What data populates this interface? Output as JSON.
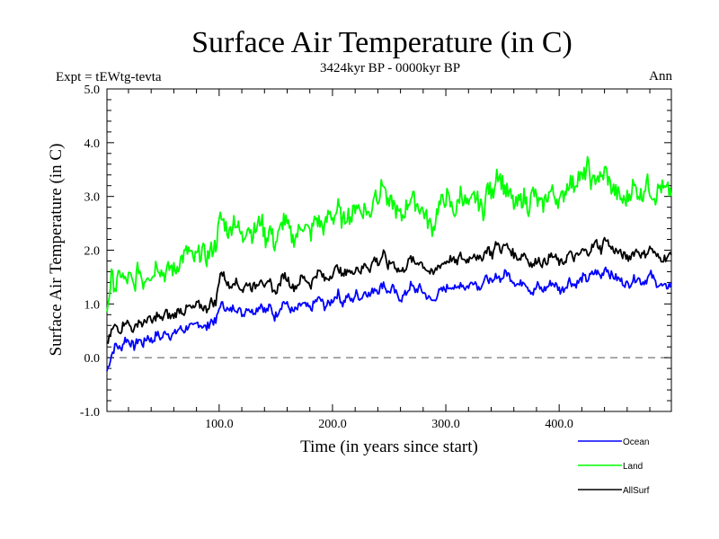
{
  "chart_data": {
    "type": "line",
    "title": "Surface Air Temperature (in C)",
    "subtitle": "3424kyr BP - 0000kyr BP",
    "left_annotation": "Expt = tEWtg-tevta",
    "right_annotation": "Ann",
    "xlabel": "Time (in years since start)",
    "ylabel": "Surface Air Temperature (in C)",
    "xlim": [
      1,
      499
    ],
    "ylim": [
      -1.0,
      5.0
    ],
    "x_ticks": [
      100,
      200,
      300,
      400
    ],
    "x_tick_labels": [
      "100.0",
      "200.0",
      "300.0",
      "400.0"
    ],
    "y_ticks": [
      -1,
      0,
      1,
      2,
      3,
      4,
      5
    ],
    "y_tick_labels": [
      "-1.0",
      "0.0",
      "1.0",
      "2.0",
      "3.0",
      "4.0",
      "5.0"
    ],
    "reference_line": {
      "y": 0.0,
      "style": "dashed",
      "color": "#555555"
    },
    "grid": false,
    "legend_position": "below-right",
    "x_step": 4,
    "x_start": 1,
    "series": [
      {
        "name": "Ocean",
        "color": "#0000ff",
        "values": [
          -0.25,
          0.05,
          0.25,
          0.15,
          0.35,
          0.3,
          0.2,
          0.35,
          0.25,
          0.4,
          0.3,
          0.45,
          0.35,
          0.5,
          0.4,
          0.45,
          0.55,
          0.5,
          0.6,
          0.55,
          0.65,
          0.6,
          0.55,
          0.7,
          0.65,
          1.0,
          0.95,
          0.85,
          0.95,
          0.9,
          0.8,
          0.95,
          0.85,
          0.9,
          1.0,
          0.85,
          0.95,
          0.75,
          0.9,
          1.05,
          0.95,
          0.85,
          0.9,
          1.0,
          0.95,
          0.9,
          1.05,
          1.1,
          0.95,
          1.0,
          1.1,
          1.2,
          1.0,
          1.15,
          1.05,
          1.2,
          1.1,
          1.25,
          1.15,
          1.3,
          1.25,
          1.4,
          1.2,
          1.3,
          1.15,
          1.1,
          1.2,
          1.35,
          1.25,
          1.3,
          1.2,
          1.1,
          1.05,
          1.2,
          1.25,
          1.3,
          1.35,
          1.25,
          1.4,
          1.3,
          1.35,
          1.45,
          1.3,
          1.4,
          1.5,
          1.35,
          1.55,
          1.45,
          1.6,
          1.5,
          1.4,
          1.35,
          1.45,
          1.3,
          1.2,
          1.35,
          1.25,
          1.3,
          1.4,
          1.35,
          1.25,
          1.3,
          1.45,
          1.35,
          1.4,
          1.5,
          1.45,
          1.55,
          1.6,
          1.5,
          1.7,
          1.55,
          1.5,
          1.45,
          1.4,
          1.35,
          1.45,
          1.5,
          1.4,
          1.45,
          1.55,
          1.4,
          1.35,
          1.3,
          1.35
        ]
      },
      {
        "name": "Land",
        "color": "#00ff00",
        "values": [
          0.9,
          1.5,
          1.3,
          1.6,
          1.4,
          1.5,
          1.3,
          1.7,
          1.4,
          1.6,
          1.5,
          1.8,
          1.6,
          1.55,
          1.7,
          1.6,
          1.8,
          1.9,
          2.0,
          1.8,
          1.9,
          2.0,
          1.85,
          2.0,
          2.1,
          2.6,
          2.5,
          2.3,
          2.6,
          2.4,
          2.2,
          2.5,
          2.3,
          2.4,
          2.6,
          2.2,
          2.4,
          2.1,
          2.3,
          2.6,
          2.4,
          2.2,
          2.3,
          2.5,
          2.4,
          2.3,
          2.6,
          2.5,
          2.4,
          2.7,
          2.6,
          2.8,
          2.5,
          2.7,
          2.6,
          2.9,
          2.7,
          2.8,
          2.6,
          3.1,
          3.0,
          3.3,
          2.8,
          2.9,
          2.7,
          2.6,
          2.8,
          3.0,
          2.9,
          2.8,
          2.7,
          2.5,
          2.4,
          2.8,
          2.9,
          3.0,
          2.8,
          2.7,
          3.1,
          2.9,
          2.8,
          3.0,
          2.9,
          2.7,
          3.2,
          3.0,
          3.5,
          3.3,
          3.1,
          3.0,
          2.8,
          2.9,
          3.0,
          2.8,
          3.1,
          2.9,
          2.8,
          3.0,
          3.1,
          3.0,
          2.9,
          3.1,
          3.3,
          3.2,
          3.4,
          3.3,
          3.6,
          3.2,
          3.4,
          3.3,
          3.5,
          3.2,
          3.1,
          3.0,
          2.9,
          3.0,
          3.2,
          3.1,
          3.0,
          3.3,
          3.1,
          3.0,
          3.2,
          3.1,
          3.1
        ]
      },
      {
        "name": "AllSurf",
        "color": "#000000",
        "values": [
          0.2,
          0.5,
          0.6,
          0.5,
          0.7,
          0.6,
          0.5,
          0.7,
          0.6,
          0.75,
          0.65,
          0.8,
          0.7,
          0.85,
          0.75,
          0.8,
          0.9,
          0.85,
          0.95,
          0.9,
          1.0,
          0.95,
          0.9,
          1.05,
          1.0,
          1.6,
          1.5,
          1.3,
          1.45,
          1.35,
          1.25,
          1.4,
          1.3,
          1.35,
          1.5,
          1.3,
          1.4,
          1.2,
          1.35,
          1.55,
          1.45,
          1.3,
          1.35,
          1.5,
          1.45,
          1.35,
          1.55,
          1.6,
          1.45,
          1.5,
          1.6,
          1.7,
          1.5,
          1.65,
          1.55,
          1.7,
          1.6,
          1.75,
          1.65,
          1.85,
          1.75,
          1.95,
          1.7,
          1.8,
          1.65,
          1.6,
          1.7,
          1.85,
          1.75,
          1.8,
          1.7,
          1.6,
          1.55,
          1.7,
          1.75,
          1.8,
          1.85,
          1.75,
          1.9,
          1.8,
          1.85,
          1.95,
          1.8,
          1.9,
          2.05,
          1.9,
          2.15,
          2.0,
          2.1,
          2.0,
          1.9,
          1.85,
          1.95,
          1.8,
          1.7,
          1.85,
          1.75,
          1.8,
          1.9,
          1.85,
          1.75,
          1.8,
          1.95,
          1.85,
          1.9,
          2.0,
          1.95,
          2.05,
          2.15,
          2.0,
          2.25,
          2.05,
          2.0,
          1.95,
          1.9,
          1.85,
          1.95,
          2.0,
          1.9,
          1.95,
          2.05,
          1.9,
          1.85,
          1.85,
          1.9
        ]
      }
    ]
  }
}
